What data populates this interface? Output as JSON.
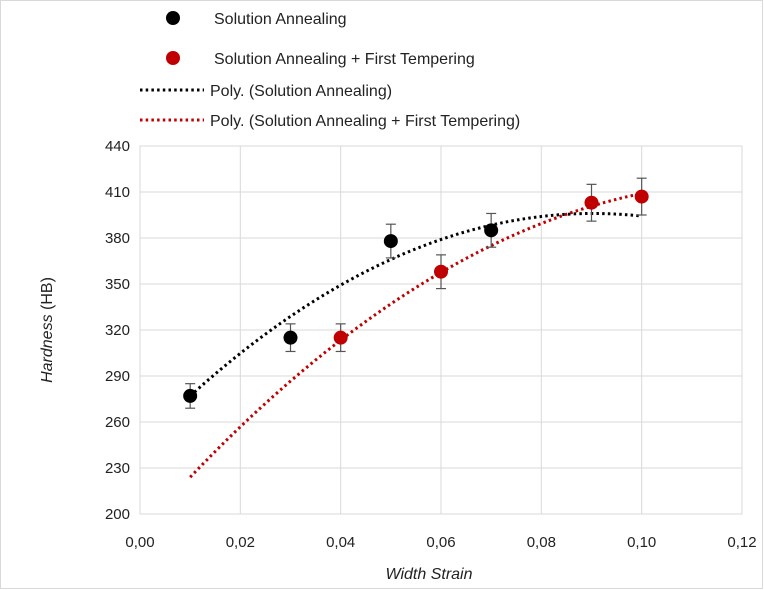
{
  "chart_data": {
    "type": "scatter",
    "title": "",
    "xlabel": "Width Strain",
    "ylabel_italic": "Hardness",
    "ylabel_unit": " (HB)",
    "xlim": [
      0,
      0.12
    ],
    "ylim": [
      200,
      440
    ],
    "xticks": [
      0,
      0.02,
      0.04,
      0.06,
      0.08,
      0.1,
      0.12
    ],
    "yticks": [
      200,
      230,
      260,
      290,
      320,
      350,
      380,
      410,
      440
    ],
    "xtick_labels": [
      "0,00",
      "0,02",
      "0,04",
      "0,06",
      "0,08",
      "0,10",
      "0,12"
    ],
    "ytick_labels": [
      "200",
      "230",
      "260",
      "290",
      "320",
      "350",
      "380",
      "410",
      "440"
    ],
    "grid": true,
    "legend_position": "top",
    "series": [
      {
        "name": "Solution Annealing",
        "color": "#000000",
        "x": [
          0.01,
          0.03,
          0.05,
          0.07
        ],
        "y": [
          277,
          315,
          378,
          385
        ],
        "err": [
          8,
          9,
          11,
          11
        ]
      },
      {
        "name": "Solution Annealing + First Tempering",
        "color": "#c00000",
        "x": [
          0.04,
          0.06,
          0.09,
          0.1
        ],
        "y": [
          315,
          358,
          403,
          407
        ],
        "err": [
          9,
          11,
          12,
          12
        ]
      }
    ],
    "trendlines": [
      {
        "name": "Poly. (Solution Annealing)",
        "color": "#000000",
        "x_range": [
          0.01,
          0.1
        ],
        "poly_points": [
          [
            0.01,
            277
          ],
          [
            0.05,
            366
          ],
          [
            0.09,
            396
          ]
        ]
      },
      {
        "name": "Poly. (Solution Annealing + First Tempering)",
        "color": "#c00000",
        "x_range": [
          0.01,
          0.1
        ],
        "poly_points": [
          [
            0.01,
            224
          ],
          [
            0.05,
            337
          ],
          [
            0.1,
            409
          ]
        ]
      }
    ]
  }
}
